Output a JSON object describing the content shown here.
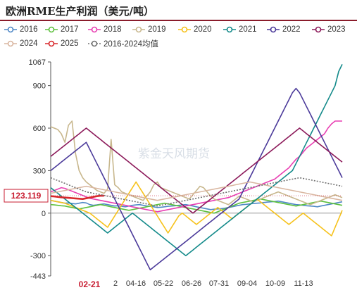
{
  "title": "欧洲RME生产利润（美元/吨）",
  "legend": [
    {
      "name": "2016",
      "color": "#4f88c6",
      "dash": false
    },
    {
      "name": "2017",
      "color": "#5ec13f",
      "dash": false
    },
    {
      "name": "2018",
      "color": "#e83fb2",
      "dash": false
    },
    {
      "name": "2019",
      "color": "#c8b78d",
      "dash": false
    },
    {
      "name": "2020",
      "color": "#f6c21c",
      "dash": false
    },
    {
      "name": "2021",
      "color": "#138a8a",
      "dash": false
    },
    {
      "name": "2022",
      "color": "#4b3a9a",
      "dash": false
    },
    {
      "name": "2023",
      "color": "#8c1a5a",
      "dash": false
    },
    {
      "name": "2024",
      "color": "#d9b6a0",
      "dash": false
    },
    {
      "name": "2025",
      "color": "#d8282c",
      "dash": false
    },
    {
      "name": "2016-2024均值",
      "color": "#707070",
      "dash": true
    }
  ],
  "watermark": "紫金天风期货",
  "chart_data": {
    "type": "line",
    "title": "欧洲RME生产利润（美元/吨）",
    "ylim": [
      -443,
      1067
    ],
    "y_ticks": [
      -443,
      -300,
      0,
      300,
      600,
      900,
      1067
    ],
    "x_ticks": [
      "2",
      "04-16",
      "05-22",
      "06-26",
      "07-31",
      "09-04",
      "10-09",
      "11-13"
    ],
    "highlight": {
      "x_label": "02-21",
      "y_value": 123.119,
      "y_label": "123.119"
    },
    "x_count": 83,
    "series": [
      {
        "name": "2016",
        "color": "#4f88c6",
        "values": [
          90,
          85,
          80,
          75,
          70,
          72,
          68,
          65,
          70,
          75,
          72,
          60,
          55,
          58,
          62,
          65,
          60,
          55,
          50,
          52,
          48,
          45,
          50,
          55,
          58,
          60,
          55,
          50,
          48,
          45,
          40,
          42,
          45,
          48,
          50,
          52,
          55,
          58,
          60,
          55,
          50,
          45,
          40,
          35,
          30,
          25,
          28,
          30,
          32,
          35,
          40,
          45,
          50,
          55,
          60,
          62,
          65,
          68,
          70,
          72,
          75,
          78,
          80,
          82,
          85,
          80,
          75,
          70,
          65,
          60,
          58,
          55,
          52,
          50,
          48,
          45,
          50,
          55,
          60,
          65,
          70,
          75,
          80
        ]
      },
      {
        "name": "2017",
        "color": "#5ec13f",
        "values": [
          60,
          58,
          55,
          52,
          50,
          45,
          40,
          35,
          30,
          35,
          40,
          45,
          50,
          55,
          60,
          55,
          50,
          45,
          40,
          35,
          30,
          25,
          20,
          25,
          30,
          35,
          40,
          45,
          50,
          55,
          60,
          65,
          70,
          65,
          60,
          55,
          50,
          45,
          40,
          35,
          30,
          25,
          20,
          15,
          10,
          5,
          0,
          10,
          20,
          30,
          40,
          50,
          60,
          70,
          75,
          80,
          85,
          90,
          95,
          100,
          95,
          90,
          85,
          80,
          75,
          70,
          65,
          60,
          55,
          50,
          55,
          60,
          65,
          70,
          75,
          80,
          85,
          80,
          75,
          70,
          65,
          60,
          55
        ]
      },
      {
        "name": "2018",
        "color": "#e83fb2",
        "values": [
          150,
          160,
          170,
          180,
          175,
          165,
          155,
          145,
          135,
          125,
          115,
          105,
          100,
          95,
          90,
          85,
          80,
          75,
          70,
          65,
          60,
          55,
          50,
          45,
          40,
          35,
          30,
          25,
          20,
          15,
          10,
          15,
          20,
          25,
          30,
          35,
          40,
          45,
          50,
          55,
          60,
          65,
          70,
          75,
          80,
          85,
          90,
          95,
          100,
          105,
          110,
          120,
          130,
          140,
          150,
          160,
          170,
          180,
          190,
          200,
          210,
          220,
          230,
          240,
          260,
          280,
          300,
          320,
          350,
          380,
          400,
          430,
          460,
          480,
          500,
          520,
          540,
          560,
          600,
          630,
          650,
          650,
          650
        ]
      },
      {
        "name": "2019",
        "color": "#c8b78d",
        "values": [
          610,
          600,
          590,
          560,
          500,
          620,
          650,
          420,
          300,
          250,
          220,
          200,
          180,
          160,
          150,
          140,
          170,
          520,
          200,
          180,
          150,
          140,
          130,
          120,
          110,
          100,
          90,
          120,
          150,
          200,
          220,
          180,
          170,
          160,
          150,
          140,
          130,
          120,
          110,
          100,
          130,
          160,
          190,
          180,
          150,
          120,
          100,
          90,
          80,
          70,
          60,
          80,
          100,
          120,
          110,
          100,
          90,
          80,
          90,
          100,
          110,
          120,
          130,
          140,
          150,
          140,
          130,
          120,
          110,
          100,
          90,
          80,
          70,
          60,
          70,
          80,
          90,
          100,
          110,
          120,
          130,
          120,
          110
        ]
      },
      {
        "name": "2020",
        "color": "#f6c21c",
        "values": [
          90,
          85,
          80,
          75,
          70,
          60,
          50,
          40,
          30,
          20,
          10,
          0,
          -20,
          -40,
          -60,
          -80,
          -100,
          -60,
          -20,
          20,
          60,
          100,
          140,
          180,
          220,
          180,
          140,
          100,
          60,
          20,
          -20,
          -60,
          -100,
          -140,
          -100,
          -60,
          -20,
          0,
          -20,
          -40,
          -60,
          -80,
          -60,
          -40,
          -20,
          0,
          20,
          40,
          20,
          0,
          -20,
          -40,
          -20,
          0,
          20,
          40,
          60,
          80,
          100,
          80,
          60,
          40,
          20,
          0,
          -20,
          -40,
          -60,
          -80,
          -60,
          -40,
          -20,
          0,
          -20,
          -40,
          -60,
          -80,
          -100,
          -120,
          -140,
          -160,
          -100,
          -40,
          20
        ]
      },
      {
        "name": "2021",
        "color": "#138a8a",
        "values": [
          180,
          160,
          140,
          120,
          100,
          80,
          60,
          40,
          20,
          0,
          -20,
          -40,
          -60,
          -80,
          -100,
          -120,
          -140,
          -120,
          -100,
          -80,
          -60,
          -40,
          -20,
          0,
          -20,
          -40,
          -60,
          -80,
          -100,
          -120,
          -140,
          -160,
          -180,
          -200,
          -220,
          -240,
          -260,
          -280,
          -300,
          -280,
          -260,
          -240,
          -220,
          -200,
          -180,
          -160,
          -140,
          -120,
          -100,
          -80,
          -60,
          -40,
          -20,
          0,
          20,
          40,
          60,
          80,
          100,
          120,
          140,
          160,
          180,
          200,
          220,
          240,
          260,
          280,
          300,
          350,
          400,
          450,
          500,
          550,
          600,
          650,
          700,
          750,
          800,
          850,
          900,
          1000,
          1050
        ]
      },
      {
        "name": "2022",
        "color": "#4b3a9a",
        "values": [
          300,
          320,
          340,
          360,
          380,
          400,
          420,
          440,
          460,
          480,
          500,
          450,
          400,
          350,
          300,
          250,
          200,
          150,
          100,
          50,
          0,
          -50,
          -100,
          -150,
          -200,
          -250,
          -300,
          -350,
          -400,
          -380,
          -360,
          -340,
          -320,
          -300,
          -280,
          -260,
          -240,
          -220,
          -200,
          -180,
          -160,
          -140,
          -120,
          -100,
          -80,
          -60,
          -40,
          -20,
          0,
          20,
          40,
          60,
          80,
          100,
          150,
          200,
          250,
          300,
          350,
          400,
          450,
          500,
          550,
          600,
          650,
          700,
          750,
          800,
          850,
          880,
          850,
          800,
          750,
          700,
          650,
          600,
          550,
          500,
          450,
          400,
          350,
          300,
          250
        ]
      },
      {
        "name": "2023",
        "color": "#8c1a5a",
        "values": [
          400,
          420,
          440,
          460,
          480,
          500,
          520,
          540,
          560,
          580,
          600,
          580,
          560,
          540,
          520,
          500,
          480,
          460,
          440,
          420,
          400,
          380,
          360,
          340,
          320,
          300,
          280,
          260,
          240,
          220,
          200,
          180,
          160,
          140,
          120,
          100,
          80,
          60,
          40,
          20,
          0,
          20,
          40,
          60,
          80,
          100,
          120,
          140,
          160,
          180,
          200,
          220,
          240,
          260,
          280,
          300,
          320,
          340,
          360,
          380,
          400,
          420,
          440,
          460,
          480,
          500,
          520,
          540,
          560,
          580,
          600,
          580,
          560,
          540,
          520,
          500,
          480,
          460,
          440,
          420,
          400,
          380,
          360
        ]
      },
      {
        "name": "2024",
        "color": "#d9b6a0",
        "values": [
          140,
          145,
          150,
          155,
          160,
          165,
          170,
          175,
          180,
          185,
          190,
          185,
          180,
          175,
          170,
          165,
          160,
          155,
          150,
          145,
          140,
          135,
          130,
          125,
          120,
          115,
          110,
          105,
          100,
          95,
          90,
          95,
          100,
          105,
          110,
          115,
          120,
          125,
          130,
          135,
          140,
          145,
          150,
          155,
          160,
          165,
          170,
          175,
          180,
          185,
          190,
          195,
          200,
          205,
          210,
          215,
          220,
          215,
          210,
          205,
          200,
          195,
          190,
          185,
          180,
          175,
          170,
          165,
          160,
          155,
          150,
          145,
          140,
          135,
          130,
          125,
          120,
          115,
          110,
          105,
          100,
          95,
          90
        ]
      },
      {
        "name": "2025",
        "color": "#d8282c",
        "values": [
          120,
          118,
          115,
          112,
          110,
          108,
          106,
          104,
          102,
          100,
          105,
          110,
          115,
          120,
          123,
          123,
          null,
          null,
          null,
          null,
          null,
          null,
          null,
          null,
          null,
          null,
          null,
          null,
          null,
          null,
          null,
          null,
          null,
          null,
          null,
          null,
          null,
          null,
          null,
          null,
          null,
          null,
          null,
          null,
          null,
          null,
          null,
          null,
          null,
          null,
          null,
          null,
          null,
          null,
          null,
          null,
          null,
          null,
          null,
          null,
          null,
          null,
          null,
          null,
          null,
          null,
          null,
          null,
          null,
          null,
          null,
          null,
          null,
          null,
          null,
          null,
          null,
          null,
          null,
          null,
          null,
          null,
          null
        ]
      },
      {
        "name": "2016-2024均值",
        "color": "#707070",
        "dash": true,
        "values": [
          250,
          240,
          230,
          220,
          210,
          200,
          190,
          180,
          170,
          160,
          150,
          145,
          140,
          135,
          130,
          125,
          120,
          115,
          110,
          105,
          100,
          95,
          90,
          85,
          80,
          75,
          70,
          65,
          60,
          55,
          50,
          55,
          60,
          65,
          70,
          75,
          80,
          85,
          90,
          95,
          100,
          105,
          110,
          115,
          120,
          125,
          130,
          135,
          140,
          145,
          150,
          155,
          160,
          165,
          170,
          175,
          180,
          185,
          190,
          195,
          200,
          205,
          210,
          215,
          220,
          225,
          230,
          235,
          240,
          245,
          250,
          245,
          240,
          235,
          230,
          225,
          220,
          215,
          210,
          205,
          200,
          195,
          190
        ]
      }
    ]
  }
}
